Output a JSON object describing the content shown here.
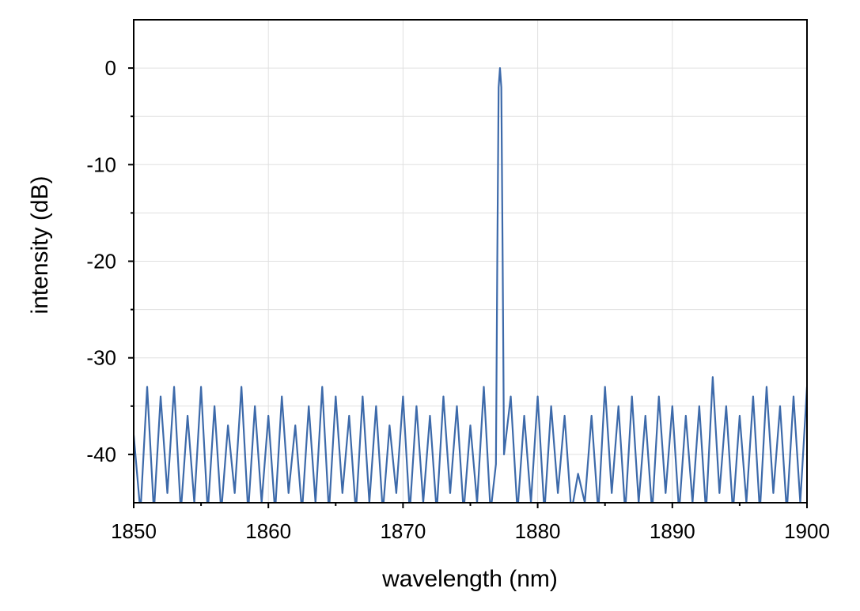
{
  "chart_data": {
    "type": "line",
    "x_label": "wavelength (nm)",
    "y_label": "intensity (dB)",
    "xlim": [
      1850,
      1900
    ],
    "xticks": [
      1850,
      1860,
      1870,
      1880,
      1890,
      1900
    ],
    "xminorticks": [
      1855,
      1865,
      1875,
      1885,
      1895
    ],
    "ylim": [
      -45,
      5
    ],
    "yticks": [
      -40,
      -30,
      -20,
      -10,
      0
    ],
    "yminorticks": [
      -35,
      -25,
      -15,
      -5
    ],
    "grid": true,
    "series": [
      {
        "color": "#3d6aaa",
        "x": [
          1850,
          1850.5,
          1851,
          1851.5,
          1852,
          1852.5,
          1853,
          1853.5,
          1854,
          1854.5,
          1855,
          1855.5,
          1856,
          1856.5,
          1857,
          1857.5,
          1858,
          1858.5,
          1859,
          1859.5,
          1860,
          1860.5,
          1861,
          1861.5,
          1862,
          1862.5,
          1863,
          1863.5,
          1864,
          1864.5,
          1865,
          1865.5,
          1866,
          1866.5,
          1867,
          1867.5,
          1868,
          1868.5,
          1869,
          1869.5,
          1870,
          1870.5,
          1871,
          1871.5,
          1872,
          1872.5,
          1873,
          1873.5,
          1874,
          1874.5,
          1875,
          1875.5,
          1876,
          1876.5,
          1876.9,
          1877.0,
          1877.1,
          1877.2,
          1877.3,
          1877.4,
          1877.5,
          1878,
          1878.5,
          1879,
          1879.5,
          1880,
          1880.5,
          1881,
          1881.5,
          1882,
          1882.5,
          1883,
          1883.5,
          1884,
          1884.5,
          1885,
          1885.5,
          1886,
          1886.5,
          1887,
          1887.5,
          1888,
          1888.5,
          1889,
          1889.5,
          1890,
          1890.5,
          1891,
          1891.5,
          1892,
          1892.5,
          1893,
          1893.5,
          1894,
          1894.5,
          1895,
          1895.5,
          1896,
          1896.5,
          1897,
          1897.5,
          1898,
          1898.5,
          1899,
          1899.5,
          1900
        ],
        "values": [
          -38,
          -46,
          -33,
          -46,
          -34,
          -44,
          -33,
          -46,
          -36,
          -45,
          -33,
          -46,
          -35,
          -46,
          -37,
          -44,
          -33,
          -46,
          -35,
          -45,
          -36,
          -46,
          -34,
          -44,
          -37,
          -46,
          -35,
          -45,
          -33,
          -46,
          -34,
          -44,
          -36,
          -46,
          -34,
          -45,
          -35,
          -46,
          -37,
          -44,
          -34,
          -46,
          -35,
          -45,
          -36,
          -46,
          -34,
          -44,
          -35,
          -46,
          -37,
          -45,
          -33,
          -46,
          -41,
          -20,
          -2,
          0,
          -2,
          -20,
          -40,
          -34,
          -46,
          -36,
          -45,
          -34,
          -46,
          -35,
          -44,
          -36,
          -46,
          -42,
          -45,
          -36,
          -46,
          -33,
          -44,
          -35,
          -46,
          -34,
          -45,
          -36,
          -46,
          -34,
          -44,
          -35,
          -46,
          -36,
          -45,
          -35,
          -46,
          -32,
          -44,
          -35,
          -46,
          -36,
          -45,
          -34,
          -46,
          -33,
          -44,
          -35,
          -46,
          -34,
          -45,
          -33
        ]
      }
    ]
  }
}
